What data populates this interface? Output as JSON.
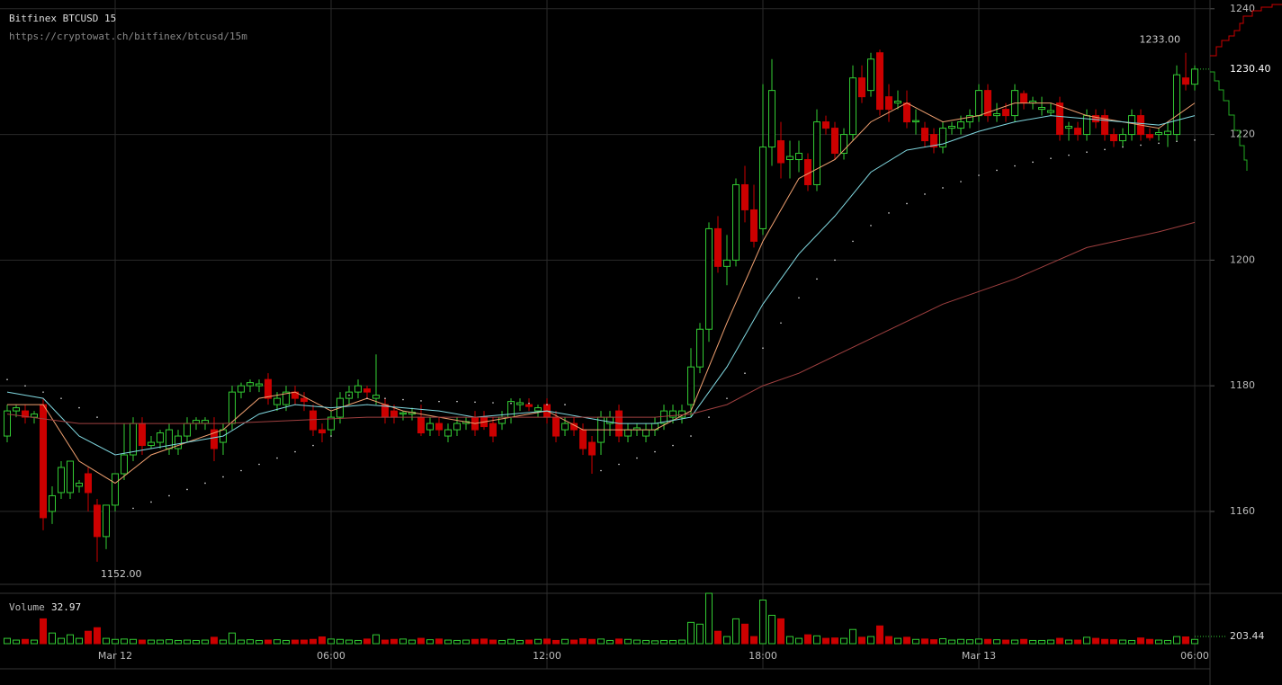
{
  "chart_data": {
    "type": "candlestick",
    "title": "Bitfinex BTCUSD 15",
    "subtitle": "https://cryptowat.ch/bitfinex/btcusd/15m",
    "up_color": "#33cc33",
    "down_color": "#cc0000",
    "grid": true,
    "xlim": [
      -0.8,
      133.7
    ],
    "xticks": [
      {
        "value": 12,
        "label": "Mar 12"
      },
      {
        "value": 36,
        "label": "06:00"
      },
      {
        "value": 60,
        "label": "12:00"
      },
      {
        "value": 84,
        "label": "18:00"
      },
      {
        "value": 108,
        "label": "Mar 13"
      },
      {
        "value": 132,
        "label": "06:00"
      }
    ],
    "ylim": [
      1148.4,
      1241.4
    ],
    "yticks": [
      1160,
      1180,
      1200,
      1220,
      1240
    ],
    "candles": [
      [
        1172,
        1177,
        1171,
        1176
      ],
      [
        1176,
        1177,
        1175,
        1176.5
      ],
      [
        1176,
        1177,
        1174,
        1175
      ],
      [
        1175,
        1176,
        1174,
        1175.5
      ],
      [
        1177,
        1178,
        1157,
        1159
      ],
      [
        1160,
        1164,
        1158,
        1162.5
      ],
      [
        1163,
        1168,
        1162,
        1167
      ],
      [
        1163,
        1168,
        1162,
        1168
      ],
      [
        1164,
        1165,
        1163,
        1164.5
      ],
      [
        1166,
        1167,
        1160,
        1163
      ],
      [
        1161,
        1162,
        1152,
        1156
      ],
      [
        1156,
        1161,
        1154,
        1161
      ],
      [
        1161,
        1166,
        1160,
        1166
      ],
      [
        1166,
        1174,
        1165,
        1169
      ],
      [
        1169,
        1175,
        1168,
        1174
      ],
      [
        1174,
        1175,
        1169,
        1170.5
      ],
      [
        1170.5,
        1172,
        1170,
        1171
      ],
      [
        1171,
        1173,
        1170,
        1172.5
      ],
      [
        1170,
        1174,
        1169,
        1173
      ],
      [
        1170,
        1173,
        1169,
        1172
      ],
      [
        1172,
        1175,
        1171,
        1174
      ],
      [
        1174,
        1175,
        1173,
        1174.5
      ],
      [
        1174,
        1175,
        1173,
        1174.5
      ],
      [
        1173,
        1175,
        1168,
        1170
      ],
      [
        1171,
        1174,
        1169,
        1173
      ],
      [
        1174,
        1180,
        1173,
        1179
      ],
      [
        1179,
        1180.5,
        1178,
        1180
      ],
      [
        1180,
        1181,
        1179,
        1180.5
      ],
      [
        1180,
        1181,
        1179,
        1180.3
      ],
      [
        1181,
        1182,
        1177,
        1178
      ],
      [
        1177,
        1179,
        1176,
        1178
      ],
      [
        1177,
        1180,
        1176,
        1179
      ],
      [
        1179,
        1180,
        1177,
        1178
      ],
      [
        1178,
        1179,
        1176,
        1177.5
      ],
      [
        1176,
        1177,
        1172,
        1173
      ],
      [
        1173,
        1174,
        1171,
        1172.5
      ],
      [
        1173,
        1176,
        1172,
        1175
      ],
      [
        1175,
        1179,
        1174,
        1178
      ],
      [
        1178,
        1180,
        1177,
        1179
      ],
      [
        1179,
        1181,
        1178,
        1180
      ],
      [
        1179.5,
        1180,
        1178,
        1179
      ],
      [
        1178,
        1185,
        1177,
        1178.5
      ],
      [
        1177,
        1178,
        1174,
        1175
      ],
      [
        1176,
        1177,
        1174,
        1175
      ],
      [
        1175.5,
        1176,
        1174.5,
        1175.7
      ],
      [
        1175.5,
        1176.5,
        1174.5,
        1175.8
      ],
      [
        1175,
        1177,
        1172,
        1172.5
      ],
      [
        1173,
        1175,
        1172,
        1174
      ],
      [
        1174,
        1175,
        1172,
        1173
      ],
      [
        1172,
        1174,
        1171,
        1173
      ],
      [
        1173,
        1175,
        1172,
        1174
      ],
      [
        1174,
        1175,
        1173,
        1174.3
      ],
      [
        1175,
        1176,
        1172,
        1173
      ],
      [
        1175,
        1176,
        1173,
        1173.5
      ],
      [
        1174,
        1175,
        1171,
        1172
      ],
      [
        1174,
        1176,
        1173,
        1175
      ],
      [
        1175,
        1178,
        1174,
        1177.5
      ],
      [
        1177,
        1178,
        1176,
        1177.3
      ],
      [
        1177,
        1178,
        1176,
        1176.7
      ],
      [
        1176,
        1177,
        1175,
        1176.5
      ],
      [
        1177,
        1178,
        1174,
        1175
      ],
      [
        1175,
        1176,
        1171,
        1172
      ],
      [
        1173,
        1175,
        1172,
        1174
      ],
      [
        1174,
        1175,
        1172,
        1173
      ],
      [
        1173,
        1174,
        1169,
        1170
      ],
      [
        1171,
        1172,
        1166,
        1169
      ],
      [
        1171,
        1176,
        1169,
        1175
      ],
      [
        1174,
        1176,
        1172,
        1175
      ],
      [
        1176,
        1177,
        1171,
        1172
      ],
      [
        1172,
        1174,
        1171,
        1173
      ],
      [
        1173,
        1174,
        1172,
        1173.3
      ],
      [
        1172,
        1174,
        1171,
        1173
      ],
      [
        1173,
        1175,
        1172,
        1174
      ],
      [
        1174,
        1177,
        1173,
        1176
      ],
      [
        1175,
        1177,
        1174,
        1176
      ],
      [
        1175,
        1177,
        1174,
        1176
      ],
      [
        1177,
        1186,
        1175,
        1183
      ],
      [
        1183,
        1190,
        1182,
        1189
      ],
      [
        1189,
        1206,
        1187,
        1205
      ],
      [
        1205,
        1207,
        1198,
        1199
      ],
      [
        1199,
        1204,
        1196,
        1200
      ],
      [
        1200,
        1213,
        1199,
        1212
      ],
      [
        1212,
        1215,
        1206,
        1208
      ],
      [
        1208,
        1212,
        1202,
        1203
      ],
      [
        1205,
        1228,
        1204,
        1218
      ],
      [
        1218,
        1232,
        1215,
        1227
      ],
      [
        1219,
        1222,
        1213,
        1215.5
      ],
      [
        1216,
        1219,
        1213,
        1216.5
      ],
      [
        1216,
        1219,
        1214,
        1217
      ],
      [
        1216,
        1217,
        1211,
        1212
      ],
      [
        1212,
        1224,
        1211,
        1222
      ],
      [
        1222,
        1223,
        1220,
        1221
      ],
      [
        1221,
        1222,
        1216,
        1217
      ],
      [
        1217,
        1221,
        1216,
        1220
      ],
      [
        1220,
        1231,
        1219,
        1229
      ],
      [
        1229,
        1231,
        1225,
        1226
      ],
      [
        1227,
        1233,
        1226,
        1232
      ],
      [
        1233,
        1233.5,
        1223,
        1224
      ],
      [
        1226,
        1228,
        1222,
        1224
      ],
      [
        1225,
        1227,
        1224,
        1225.3
      ],
      [
        1225,
        1227,
        1221,
        1222
      ],
      [
        1222,
        1224,
        1220,
        1222.2
      ],
      [
        1221,
        1222,
        1218,
        1219
      ],
      [
        1220,
        1221,
        1217,
        1218
      ],
      [
        1218,
        1222,
        1217,
        1221
      ],
      [
        1221,
        1222,
        1220,
        1221.3
      ],
      [
        1221,
        1223,
        1220,
        1222
      ],
      [
        1222,
        1224,
        1221,
        1223
      ],
      [
        1223,
        1228,
        1222,
        1227
      ],
      [
        1227,
        1228,
        1222,
        1223
      ],
      [
        1223,
        1225,
        1222,
        1223.3
      ],
      [
        1224,
        1225,
        1222,
        1223
      ],
      [
        1223,
        1228,
        1222,
        1227
      ],
      [
        1226.5,
        1227,
        1224,
        1225
      ],
      [
        1225,
        1226,
        1224,
        1225.3
      ],
      [
        1224,
        1226,
        1223,
        1224.3
      ],
      [
        1223.5,
        1225,
        1223,
        1223.8
      ],
      [
        1225,
        1226,
        1219,
        1220
      ],
      [
        1221,
        1222,
        1219,
        1221.3
      ],
      [
        1221,
        1222,
        1219,
        1220
      ],
      [
        1220,
        1224,
        1219,
        1223
      ],
      [
        1223,
        1224,
        1221,
        1222
      ],
      [
        1223,
        1224,
        1219,
        1220
      ],
      [
        1220,
        1221,
        1218,
        1219
      ],
      [
        1219,
        1221,
        1218,
        1220
      ],
      [
        1220,
        1224,
        1219,
        1223
      ],
      [
        1223,
        1224,
        1219,
        1220
      ],
      [
        1220,
        1221,
        1219,
        1219.5
      ],
      [
        1220,
        1221,
        1219,
        1220.3
      ],
      [
        1220,
        1222,
        1218,
        1220.5
      ],
      [
        1220,
        1231,
        1219,
        1229.5
      ],
      [
        1229,
        1233,
        1227,
        1228
      ],
      [
        1228,
        1231,
        1227,
        1230.4
      ]
    ],
    "indicators": [
      {
        "color": "#f0a070",
        "x": [
          0,
          4,
          8,
          12,
          16,
          20,
          24,
          28,
          32,
          36,
          40,
          44,
          48,
          52,
          56,
          60,
          64,
          68,
          72,
          76,
          80,
          84,
          88,
          92,
          96,
          100,
          104,
          108,
          112,
          116,
          120,
          124,
          128,
          132
        ],
        "values": [
          1177,
          1177,
          1168,
          1164.5,
          1169,
          1171,
          1173,
          1178,
          1179,
          1176,
          1178,
          1176,
          1175,
          1174,
          1175,
          1176,
          1173,
          1173,
          1173,
          1176,
          1190,
          1203,
          1213,
          1216,
          1222,
          1225,
          1222,
          1223,
          1225,
          1225,
          1223,
          1222,
          1221,
          1225
        ]
      },
      {
        "color": "#80d8e0",
        "x": [
          0,
          4,
          8,
          12,
          16,
          20,
          24,
          28,
          32,
          36,
          40,
          44,
          48,
          52,
          56,
          60,
          64,
          68,
          72,
          76,
          80,
          84,
          88,
          92,
          96,
          100,
          104,
          108,
          112,
          116,
          120,
          124,
          128,
          132
        ],
        "values": [
          1179,
          1178,
          1172,
          1169,
          1170,
          1171,
          1172,
          1175.5,
          1177,
          1176.5,
          1177,
          1176.5,
          1176,
          1175,
          1175.5,
          1176,
          1175,
          1174,
          1174,
          1175,
          1183,
          1193,
          1201,
          1207,
          1214,
          1217.5,
          1218.5,
          1220.5,
          1222,
          1223,
          1222.5,
          1222,
          1221.5,
          1223
        ]
      },
      {
        "color": "#a04040",
        "x": [
          0,
          8,
          16,
          24,
          32,
          40,
          48,
          56,
          64,
          72,
          76,
          80,
          84,
          88,
          96,
          104,
          112,
          120,
          128,
          132
        ],
        "values": [
          1175.5,
          1174,
          1174,
          1174,
          1174.5,
          1175,
          1175,
          1175,
          1175,
          1175,
          1175.5,
          1177,
          1180,
          1182,
          1187.5,
          1193,
          1197,
          1202,
          1204.5,
          1206
        ]
      }
    ],
    "sar": {
      "color": "#dddddd",
      "x": [
        0,
        2,
        4,
        6,
        8,
        10,
        14,
        16,
        18,
        20,
        22,
        24,
        26,
        28,
        30,
        32,
        34,
        36,
        38,
        40,
        42,
        44,
        46,
        48,
        50,
        52,
        54,
        56,
        58,
        60,
        62,
        66,
        68,
        70,
        72,
        74,
        76,
        78,
        80,
        82,
        84,
        86,
        88,
        90,
        92,
        94,
        96,
        98,
        100,
        102,
        104,
        106,
        108,
        110,
        112,
        114,
        116,
        118,
        120,
        122,
        124,
        126,
        128,
        130,
        132
      ],
      "values": [
        1181,
        1180,
        1179,
        1178,
        1176.5,
        1175,
        1160.5,
        1161.5,
        1162.5,
        1163.5,
        1164.5,
        1165.5,
        1166.5,
        1167.5,
        1168.5,
        1169.5,
        1170.5,
        1172,
        1178.5,
        1178,
        1178,
        1177.8,
        1177.6,
        1177.5,
        1177.5,
        1177.4,
        1177.3,
        1177.2,
        1177.2,
        1177,
        1177,
        1166.5,
        1167.5,
        1168.5,
        1169.5,
        1170.5,
        1172,
        1175,
        1178,
        1182,
        1186,
        1190,
        1194,
        1197,
        1200,
        1203,
        1205.5,
        1207.5,
        1209,
        1210.5,
        1211.5,
        1212.5,
        1213.5,
        1214.3,
        1215,
        1215.6,
        1216.2,
        1216.7,
        1217.2,
        1217.6,
        1218,
        1218.3,
        1218.6,
        1218.9,
        1219.1
      ]
    },
    "price_tag": {
      "value": 1230.4,
      "label": "1230.40"
    },
    "annotations": [
      {
        "x": 131,
        "value": 1233,
        "label": "1233.00"
      },
      {
        "x": 10,
        "value": 1152,
        "label": "1152.00"
      }
    ],
    "volume": {
      "label": "Volume",
      "value": 32.97,
      "ylim": [
        0,
        1420
      ],
      "tag": {
        "value": 203.44,
        "label": "203.44"
      },
      "values": [
        150,
        100,
        120,
        100,
        700,
        300,
        150,
        250,
        150,
        350,
        450,
        150,
        120,
        130,
        120,
        100,
        100,
        100,
        110,
        90,
        100,
        90,
        100,
        180,
        100,
        300,
        100,
        110,
        90,
        100,
        110,
        90,
        100,
        100,
        120,
        190,
        130,
        120,
        100,
        90,
        130,
        250,
        100,
        120,
        130,
        100,
        150,
        110,
        130,
        100,
        90,
        100,
        120,
        130,
        100,
        90,
        120,
        90,
        100,
        120,
        130,
        90,
        120,
        100,
        140,
        120,
        130,
        90,
        130,
        120,
        100,
        90,
        80,
        90,
        90,
        100,
        600,
        550,
        1420,
        350,
        200,
        700,
        550,
        200,
        1230,
        800,
        700,
        200,
        150,
        250,
        220,
        150,
        160,
        150,
        400,
        180,
        200,
        500,
        200,
        150,
        180,
        120,
        130,
        110,
        140,
        100,
        120,
        110,
        130,
        120,
        110,
        100,
        100,
        120,
        90,
        90,
        100,
        150,
        100,
        100,
        180,
        150,
        120,
        110,
        100,
        90,
        160,
        120,
        100,
        90,
        200,
        190,
        120
      ]
    }
  }
}
